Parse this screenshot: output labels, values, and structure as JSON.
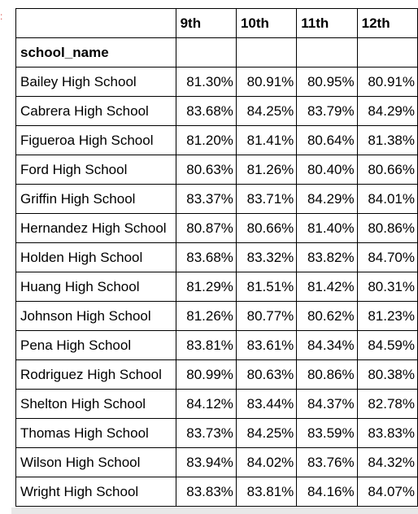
{
  "table": {
    "columns": [
      "9th",
      "10th",
      "11th",
      "12th"
    ],
    "index_name": "school_name",
    "rows": [
      {
        "name": "Bailey High School",
        "values": [
          "81.30%",
          "80.91%",
          "80.95%",
          "80.91%"
        ]
      },
      {
        "name": "Cabrera High School",
        "values": [
          "83.68%",
          "84.25%",
          "83.79%",
          "84.29%"
        ]
      },
      {
        "name": "Figueroa High School",
        "values": [
          "81.20%",
          "81.41%",
          "80.64%",
          "81.38%"
        ]
      },
      {
        "name": "Ford High School",
        "values": [
          "80.63%",
          "81.26%",
          "80.40%",
          "80.66%"
        ]
      },
      {
        "name": "Griffin High School",
        "values": [
          "83.37%",
          "83.71%",
          "84.29%",
          "84.01%"
        ]
      },
      {
        "name": "Hernandez High School",
        "values": [
          "80.87%",
          "80.66%",
          "81.40%",
          "80.86%"
        ]
      },
      {
        "name": "Holden High School",
        "values": [
          "83.68%",
          "83.32%",
          "83.82%",
          "84.70%"
        ]
      },
      {
        "name": "Huang High School",
        "values": [
          "81.29%",
          "81.51%",
          "81.42%",
          "80.31%"
        ]
      },
      {
        "name": "Johnson High School",
        "values": [
          "81.26%",
          "80.77%",
          "80.62%",
          "81.23%"
        ]
      },
      {
        "name": "Pena High School",
        "values": [
          "83.81%",
          "83.61%",
          "84.34%",
          "84.59%"
        ]
      },
      {
        "name": "Rodriguez High School",
        "values": [
          "80.99%",
          "80.63%",
          "80.86%",
          "80.38%"
        ]
      },
      {
        "name": "Shelton High School",
        "values": [
          "84.12%",
          "83.44%",
          "84.37%",
          "82.78%"
        ]
      },
      {
        "name": "Thomas High School",
        "values": [
          "83.73%",
          "84.25%",
          "83.59%",
          "83.83%"
        ]
      },
      {
        "name": "Wilson High School",
        "values": [
          "83.94%",
          "84.02%",
          "83.76%",
          "84.32%"
        ]
      },
      {
        "name": "Wright High School",
        "values": [
          "83.83%",
          "83.81%",
          "84.16%",
          "84.07%"
        ]
      }
    ]
  },
  "colors": {
    "border": "#000000",
    "scrollbar": "#e8e8e8",
    "edge_mark": "#d9534f"
  }
}
